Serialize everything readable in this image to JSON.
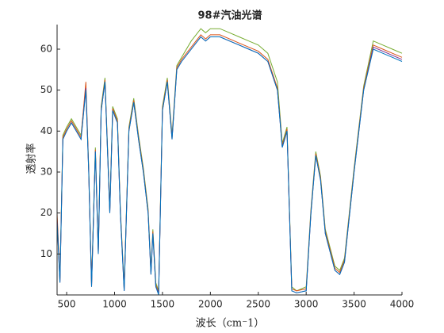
{
  "chart_data": {
    "type": "line",
    "title": "98#汽油光谱",
    "x_label": "波长（cm⁻1）",
    "y_label": "透射率",
    "xlim": [
      400,
      4000
    ],
    "ylim": [
      0,
      66
    ],
    "xticks": [
      500,
      1000,
      1500,
      2000,
      2500,
      3000,
      3500,
      4000
    ],
    "yticks": [
      10,
      20,
      30,
      40,
      50,
      60
    ],
    "x": [
      400,
      430,
      460,
      500,
      550,
      600,
      650,
      700,
      730,
      760,
      800,
      830,
      860,
      900,
      950,
      980,
      1030,
      1060,
      1100,
      1150,
      1200,
      1250,
      1300,
      1350,
      1380,
      1400,
      1430,
      1460,
      1500,
      1550,
      1600,
      1650,
      1700,
      1800,
      1900,
      1950,
      2000,
      2100,
      2200,
      2300,
      2400,
      2500,
      2600,
      2700,
      2750,
      2800,
      2850,
      2900,
      3000,
      3050,
      3100,
      3150,
      3200,
      3300,
      3350,
      3400,
      3500,
      3600,
      3700,
      3800,
      3900,
      4000
    ],
    "series": [
      {
        "name": "green",
        "color": "#77ac30",
        "values": [
          19,
          4,
          39,
          41,
          43,
          41,
          39,
          51,
          31,
          3,
          36,
          11,
          46,
          53,
          21,
          46,
          43,
          21,
          2,
          41,
          48,
          39,
          31,
          21,
          6,
          16,
          3,
          1,
          46,
          53,
          39,
          56,
          58,
          62,
          65,
          64,
          65,
          65,
          64,
          63,
          62,
          61,
          59,
          52,
          37,
          41,
          2,
          1,
          2,
          21,
          35,
          29,
          16,
          7,
          6,
          9,
          31,
          51,
          62,
          61,
          60,
          59
        ]
      },
      {
        "name": "red",
        "color": "#d95319",
        "values": [
          20,
          3.5,
          38.5,
          40.5,
          42.5,
          40.5,
          38.5,
          52,
          30.5,
          2.5,
          35.5,
          10.5,
          45.5,
          52.5,
          20.5,
          45.5,
          42.5,
          20.5,
          1.5,
          40.5,
          47.5,
          38.5,
          30.5,
          20.5,
          5.5,
          15.5,
          2.5,
          0.5,
          45.5,
          52.5,
          38.5,
          55.5,
          57.5,
          60.5,
          63.5,
          62.5,
          63.5,
          63.5,
          62.5,
          61.5,
          60.5,
          59.5,
          57.5,
          50.5,
          36.5,
          40.5,
          1.5,
          1,
          1.5,
          20.5,
          34.5,
          28.5,
          15.5,
          6.5,
          5.5,
          8.5,
          30.5,
          50.5,
          61,
          60,
          59,
          58
        ]
      },
      {
        "name": "purple",
        "color": "#7e2f8e",
        "values": [
          18.5,
          3,
          38,
          40,
          42,
          40,
          38,
          50.5,
          30,
          2,
          35,
          10,
          45,
          52,
          20,
          45,
          42,
          20,
          1,
          40,
          47,
          38,
          30,
          20,
          5,
          15,
          2,
          0.5,
          45,
          52,
          38,
          55,
          57,
          60,
          63,
          62,
          63,
          63,
          62,
          61,
          60,
          59,
          57,
          50,
          36,
          40,
          1,
          0.5,
          1,
          20,
          34,
          28,
          15,
          6,
          5,
          8,
          30,
          50,
          60.5,
          59.5,
          58.5,
          57.5
        ]
      },
      {
        "name": "blue",
        "color": "#0072bd",
        "values": [
          18,
          3,
          38,
          40,
          42,
          40,
          38,
          50,
          30,
          2,
          35,
          10,
          45,
          52,
          20,
          45,
          42,
          20,
          1,
          40,
          47,
          38,
          30,
          20,
          5,
          15,
          2,
          0,
          45,
          52,
          38,
          55,
          57,
          60,
          63,
          62,
          63,
          63,
          62,
          61,
          60,
          59,
          57,
          50,
          36,
          40,
          1,
          0.5,
          1,
          20,
          34,
          28,
          15,
          6,
          5,
          8,
          30,
          50,
          60,
          59,
          58,
          57
        ]
      }
    ]
  }
}
